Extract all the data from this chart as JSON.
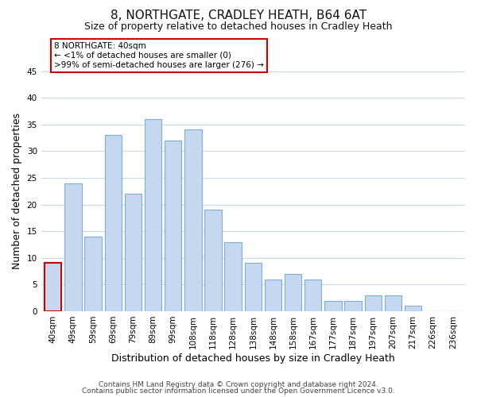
{
  "title": "8, NORTHGATE, CRADLEY HEATH, B64 6AT",
  "subtitle": "Size of property relative to detached houses in Cradley Heath",
  "xlabel": "Distribution of detached houses by size in Cradley Heath",
  "ylabel": "Number of detached properties",
  "categories": [
    "40sqm",
    "49sqm",
    "59sqm",
    "69sqm",
    "79sqm",
    "89sqm",
    "99sqm",
    "108sqm",
    "118sqm",
    "128sqm",
    "138sqm",
    "148sqm",
    "158sqm",
    "167sqm",
    "177sqm",
    "187sqm",
    "197sqm",
    "207sqm",
    "217sqm",
    "226sqm",
    "236sqm"
  ],
  "values": [
    9,
    24,
    14,
    33,
    22,
    36,
    32,
    34,
    19,
    13,
    9,
    6,
    7,
    6,
    2,
    2,
    3,
    3,
    1,
    0,
    0
  ],
  "bar_color": "#c5d8f0",
  "bar_edge_color": "#7bafd4",
  "highlight_index": 0,
  "highlight_edge_color": "#cc0000",
  "annotation_box_text": "8 NORTHGATE: 40sqm\n← <1% of detached houses are smaller (0)\n>99% of semi-detached houses are larger (276) →",
  "annotation_box_edge_color": "#cc0000",
  "annotation_box_facecolor": "#ffffff",
  "ylim": [
    0,
    45
  ],
  "yticks": [
    0,
    5,
    10,
    15,
    20,
    25,
    30,
    35,
    40,
    45
  ],
  "footer_line1": "Contains HM Land Registry data © Crown copyright and database right 2024.",
  "footer_line2": "Contains public sector information licensed under the Open Government Licence v3.0.",
  "bg_color": "#ffffff",
  "grid_color": "#c8d8e8",
  "title_fontsize": 11,
  "subtitle_fontsize": 9,
  "axis_label_fontsize": 9,
  "tick_fontsize": 7.5,
  "footer_fontsize": 6.5
}
